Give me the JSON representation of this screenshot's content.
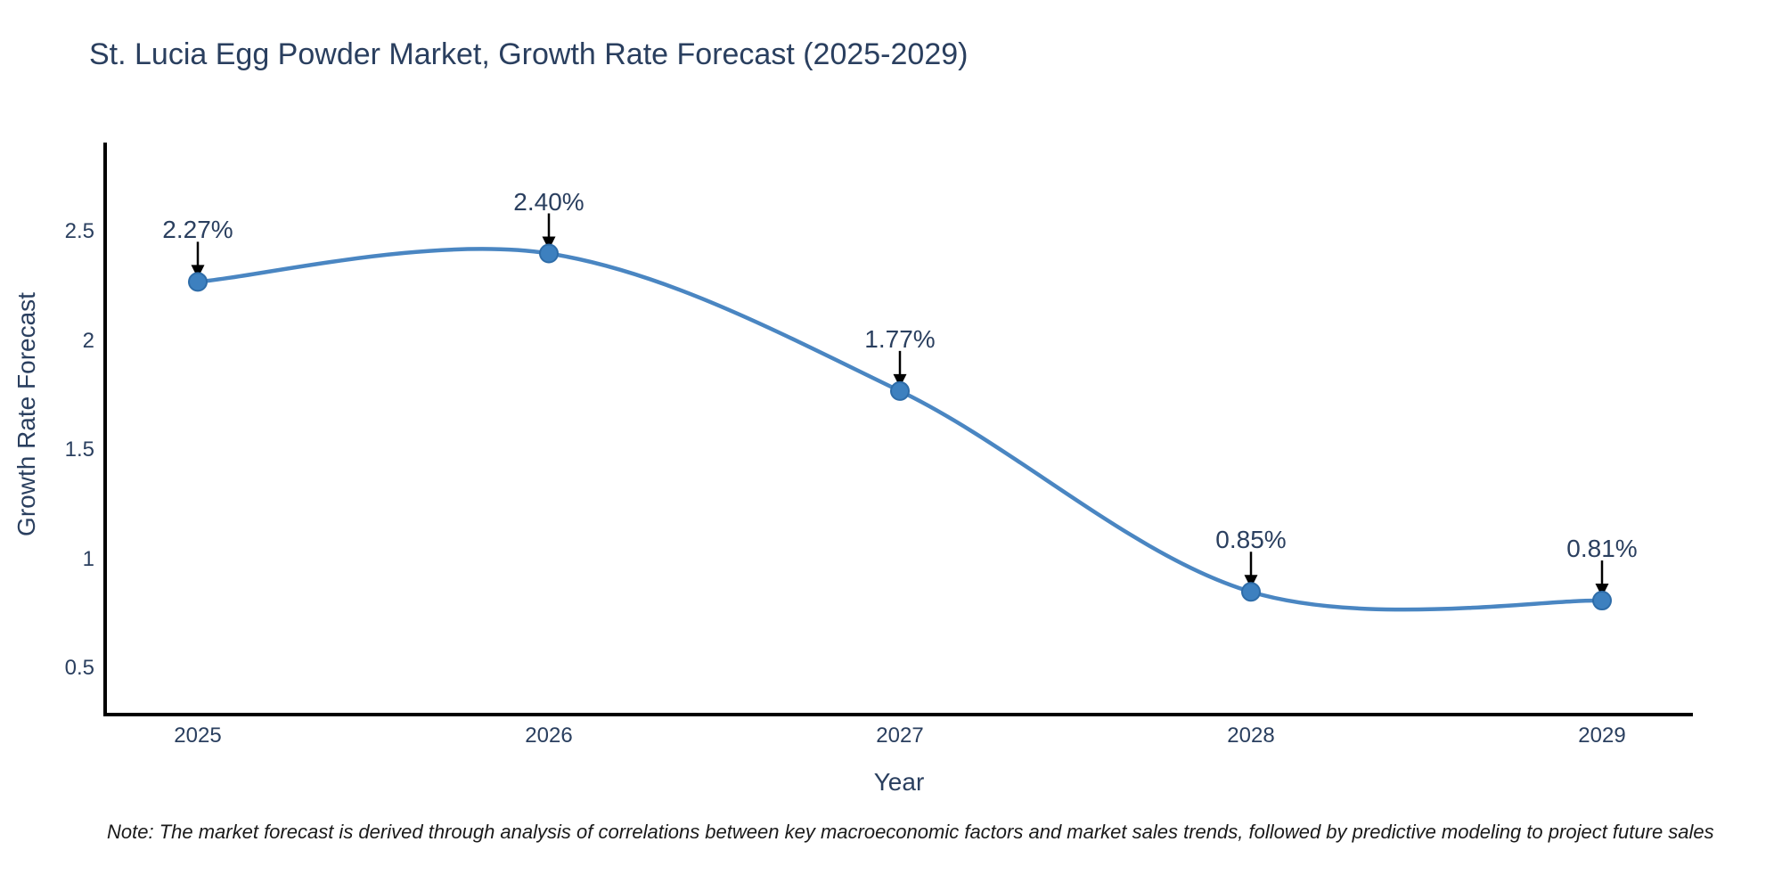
{
  "title": "St. Lucia Egg Powder Market, Growth Rate Forecast (2025-2029)",
  "note": "Note: The market forecast is derived through analysis of correlations between key macroeconomic factors and market sales trends, followed by predictive modeling to project future sales",
  "chart_data": {
    "type": "line",
    "title": "St. Lucia Egg Powder Market, Growth Rate Forecast (2025-2029)",
    "x": [
      2025,
      2026,
      2027,
      2028,
      2029
    ],
    "values": [
      2.27,
      2.4,
      1.77,
      0.85,
      0.81
    ],
    "series": [
      {
        "name": "Growth Rate Forecast",
        "values": [
          2.27,
          2.4,
          1.77,
          0.85,
          0.81
        ]
      }
    ],
    "point_labels": [
      "2.27%",
      "2.40%",
      "1.77%",
      "0.85%",
      "0.81%"
    ],
    "xlabel": "Year",
    "ylabel": "Growth Rate Forecast",
    "xticks": [
      "2025",
      "2026",
      "2027",
      "2028",
      "2029"
    ],
    "yticks": [
      "2.5",
      "2",
      "1.5",
      "1",
      "0.5"
    ],
    "ytick_values": [
      2.5,
      2,
      1.5,
      1,
      0.5
    ],
    "ylim": [
      0.29,
      2.91
    ],
    "line_shape": "spline",
    "grid": false,
    "legend_position": "none",
    "line_color": "#4a86c2",
    "marker_color": "#3d80bf",
    "marker_edge_color": "#2e6ca8",
    "annotation_arrow_color": "#000000",
    "axis_color": "#000000",
    "text_color": "#2a3f5f"
  }
}
